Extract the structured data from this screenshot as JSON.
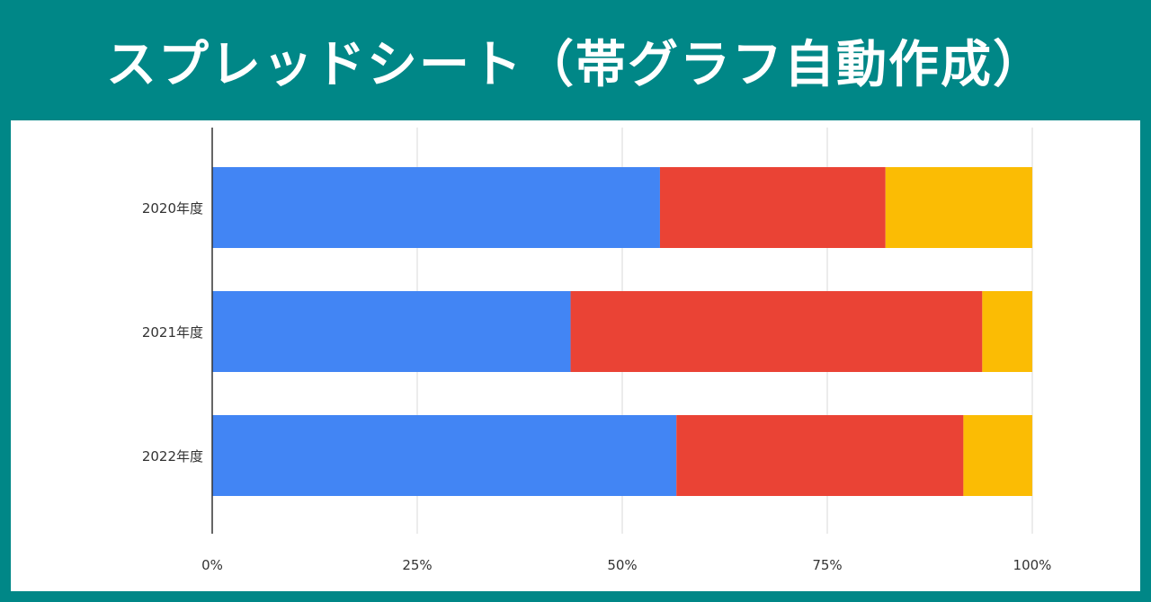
{
  "header": {
    "title": "スプレッドシート（帯グラフ自動作成）"
  },
  "colors": {
    "background": "#008787",
    "panel": "#ffffff",
    "title_text": "#ffffff"
  },
  "chart_data": {
    "type": "bar",
    "orientation": "horizontal",
    "stacked": "percent",
    "categories": [
      "2020年度",
      "2021年度",
      "2022年度"
    ],
    "series": [
      {
        "color": "#4285f4",
        "values": [
          54.6,
          43.7,
          56.6
        ]
      },
      {
        "color": "#ea4335",
        "values": [
          27.5,
          50.2,
          35.0
        ]
      },
      {
        "color": "#fbbc04",
        "values": [
          17.9,
          6.1,
          8.4
        ]
      }
    ],
    "x_ticks": [
      "0%",
      "25%",
      "50%",
      "75%",
      "100%"
    ],
    "xlim": [
      0,
      100
    ],
    "grid": "vertical",
    "legend": "none",
    "title": "",
    "xlabel": "",
    "ylabel": ""
  }
}
